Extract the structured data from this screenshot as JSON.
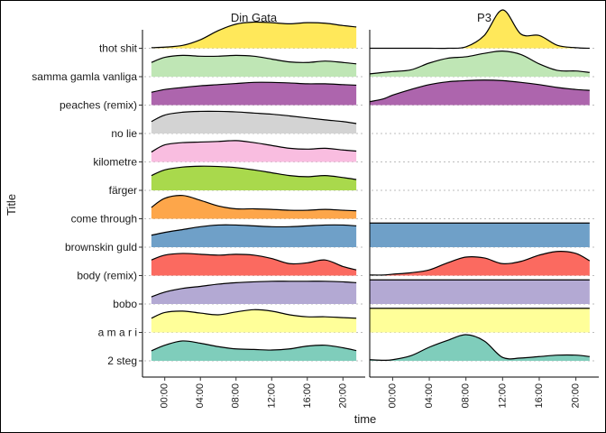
{
  "chart_data": {
    "type": "ridgeline",
    "ylabel": "Title",
    "xlabel": "time",
    "x_ticks": [
      "00:00",
      "04:00",
      "08:00",
      "12:00",
      "16:00",
      "20:00"
    ],
    "x_tick_hours": [
      0,
      4,
      8,
      12,
      16,
      20
    ],
    "xlim_hours": [
      -2.5,
      22.5
    ],
    "grid": false,
    "titles": [
      "2 steg",
      "a m a r i",
      "bobo",
      "body (remix)",
      "brownskin guld",
      "come through",
      "färger",
      "kilometre",
      "no lie",
      "peaches (remix)",
      "samma gamla vanliga",
      "thot shit"
    ],
    "colors": [
      "#7fcdbb",
      "#ffff99",
      "#b3a9d3",
      "#fb6a60",
      "#6fa0c8",
      "#fda64a",
      "#a9d94c",
      "#f9bde0",
      "#d3d3d3",
      "#ad65ad",
      "#bfe6b5",
      "#ffe85a"
    ],
    "panels": [
      {
        "name": "Din Gata",
        "x_hours": [
          -1.5,
          0,
          2,
          4,
          6,
          8,
          10,
          12,
          14,
          16,
          18,
          20,
          21.5
        ],
        "series": [
          {
            "title": "2 steg",
            "values": [
              0.35,
              0.55,
              0.7,
              0.62,
              0.5,
              0.42,
              0.4,
              0.38,
              0.42,
              0.52,
              0.55,
              0.46,
              0.36
            ]
          },
          {
            "title": "a m a r i",
            "values": [
              0.5,
              0.7,
              0.75,
              0.68,
              0.62,
              0.72,
              0.8,
              0.75,
              0.62,
              0.55,
              0.55,
              0.52,
              0.5
            ]
          },
          {
            "title": "bobo",
            "values": [
              0.25,
              0.42,
              0.55,
              0.62,
              0.7,
              0.75,
              0.78,
              0.8,
              0.8,
              0.8,
              0.8,
              0.78,
              0.75
            ]
          },
          {
            "title": "body (remix)",
            "values": [
              0.55,
              0.72,
              0.78,
              0.75,
              0.72,
              0.75,
              0.72,
              0.6,
              0.42,
              0.45,
              0.55,
              0.32,
              0.2
            ]
          },
          {
            "title": "brownskin guld",
            "values": [
              0.42,
              0.52,
              0.62,
              0.72,
              0.78,
              0.78,
              0.75,
              0.72,
              0.72,
              0.75,
              0.78,
              0.78,
              0.75
            ]
          },
          {
            "title": "come through",
            "values": [
              0.4,
              0.72,
              0.82,
              0.65,
              0.45,
              0.35,
              0.35,
              0.33,
              0.3,
              0.3,
              0.33,
              0.3,
              0.28
            ]
          },
          {
            "title": "färger",
            "values": [
              0.52,
              0.72,
              0.82,
              0.85,
              0.84,
              0.8,
              0.72,
              0.62,
              0.52,
              0.48,
              0.52,
              0.45,
              0.38
            ]
          },
          {
            "title": "kilometre",
            "values": [
              0.35,
              0.6,
              0.68,
              0.7,
              0.72,
              0.75,
              0.68,
              0.58,
              0.48,
              0.45,
              0.48,
              0.42,
              0.38
            ]
          },
          {
            "title": "no lie",
            "values": [
              0.42,
              0.65,
              0.75,
              0.78,
              0.78,
              0.76,
              0.72,
              0.68,
              0.62,
              0.55,
              0.48,
              0.42,
              0.35
            ]
          },
          {
            "title": "peaches (remix)",
            "values": [
              0.45,
              0.55,
              0.62,
              0.68,
              0.72,
              0.76,
              0.8,
              0.8,
              0.78,
              0.75,
              0.75,
              0.72,
              0.7
            ]
          },
          {
            "title": "samma gamla vanliga",
            "values": [
              0.5,
              0.68,
              0.75,
              0.72,
              0.72,
              0.75,
              0.72,
              0.62,
              0.52,
              0.5,
              0.55,
              0.5,
              0.45
            ]
          },
          {
            "title": "thot shit",
            "values": [
              0.02,
              0.04,
              0.1,
              0.3,
              0.62,
              0.85,
              0.92,
              0.9,
              0.86,
              0.9,
              0.88,
              0.8,
              0.75
            ]
          }
        ]
      },
      {
        "name": "P3",
        "x_hours": [
          -2.5,
          -1,
          0,
          2,
          4,
          6,
          8,
          10,
          12,
          14,
          16,
          18,
          20,
          21.5
        ],
        "series": [
          {
            "title": "2 steg",
            "values": [
              0.04,
              0.02,
              0.04,
              0.18,
              0.48,
              0.72,
              0.92,
              0.7,
              0.12,
              0.1,
              0.15,
              0.2,
              0.2,
              0.15
            ]
          },
          {
            "title": "a m a r i",
            "values": [
              0.85,
              0.85,
              0.85,
              0.85,
              0.85,
              0.85,
              0.85,
              0.85,
              0.85,
              0.85,
              0.85,
              0.85,
              0.85,
              0.85
            ]
          },
          {
            "title": "bobo",
            "values": [
              0.85,
              0.85,
              0.85,
              0.85,
              0.85,
              0.85,
              0.85,
              0.85,
              0.85,
              0.85,
              0.85,
              0.85,
              0.85,
              0.85
            ]
          },
          {
            "title": "body (remix)",
            "values": [
              0.02,
              0.02,
              0.05,
              0.1,
              0.2,
              0.45,
              0.65,
              0.62,
              0.42,
              0.5,
              0.72,
              0.85,
              0.78,
              0.52
            ]
          },
          {
            "title": "brownskin guld",
            "values": [
              0.85,
              0.85,
              0.85,
              0.85,
              0.85,
              0.85,
              0.85,
              0.85,
              0.85,
              0.85,
              0.85,
              0.85,
              0.85,
              0.85
            ]
          },
          {
            "title": "come through",
            "values": []
          },
          {
            "title": "färger",
            "values": []
          },
          {
            "title": "kilometre",
            "values": []
          },
          {
            "title": "no lie",
            "values": []
          },
          {
            "title": "peaches (remix)",
            "values": [
              0.12,
              0.22,
              0.35,
              0.55,
              0.72,
              0.82,
              0.86,
              0.88,
              0.86,
              0.8,
              0.72,
              0.62,
              0.55,
              0.52
            ]
          },
          {
            "title": "samma gamla vanliga",
            "values": [
              0.1,
              0.15,
              0.18,
              0.24,
              0.48,
              0.65,
              0.7,
              0.82,
              0.9,
              0.78,
              0.45,
              0.22,
              0.2,
              0.15
            ]
          },
          {
            "title": "thot shit",
            "values": [
              0.0,
              0.0,
              0.0,
              0.0,
              0.0,
              0.0,
              0.05,
              0.45,
              1.35,
              0.5,
              0.45,
              0.1,
              0.02,
              0.0
            ]
          }
        ]
      }
    ]
  }
}
